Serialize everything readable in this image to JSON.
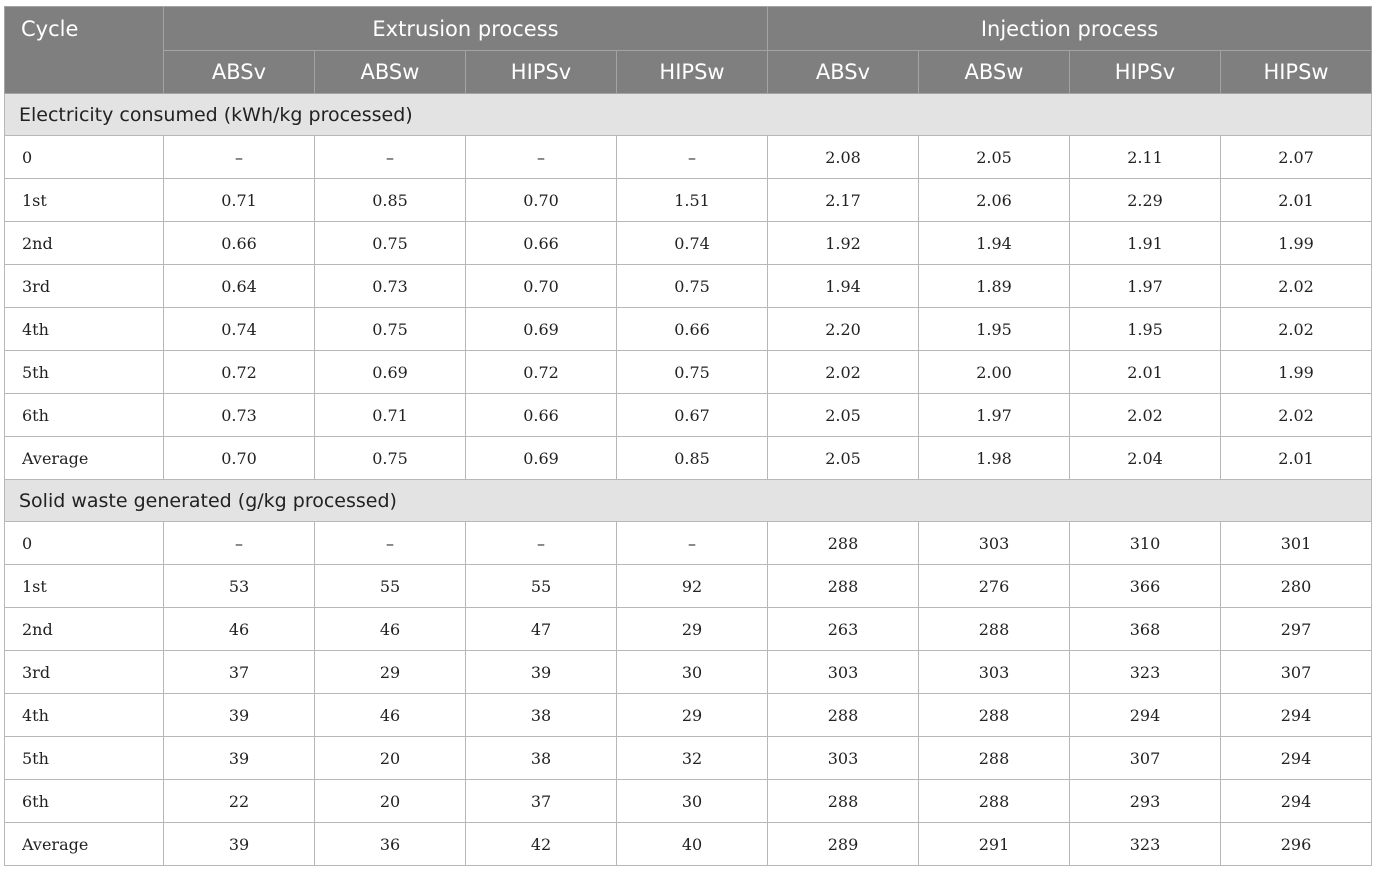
{
  "header": {
    "cycle_label": "Cycle",
    "groups": [
      "Extrusion process",
      "Injection process"
    ],
    "columns": [
      "ABSv",
      "ABSw",
      "HIPSv",
      "HIPSw",
      "ABSv",
      "ABSw",
      "HIPSv",
      "HIPSw"
    ]
  },
  "sections": [
    {
      "title": "Electricity consumed (kWh/kg processed)",
      "rows": [
        {
          "label": "0",
          "values": [
            "–",
            "–",
            "–",
            "–",
            "2.08",
            "2.05",
            "2.11",
            "2.07"
          ]
        },
        {
          "label": "1st",
          "values": [
            "0.71",
            "0.85",
            "0.70",
            "1.51",
            "2.17",
            "2.06",
            "2.29",
            "2.01"
          ]
        },
        {
          "label": "2nd",
          "values": [
            "0.66",
            "0.75",
            "0.66",
            "0.74",
            "1.92",
            "1.94",
            "1.91",
            "1.99"
          ]
        },
        {
          "label": "3rd",
          "values": [
            "0.64",
            "0.73",
            "0.70",
            "0.75",
            "1.94",
            "1.89",
            "1.97",
            "2.02"
          ]
        },
        {
          "label": "4th",
          "values": [
            "0.74",
            "0.75",
            "0.69",
            "0.66",
            "2.20",
            "1.95",
            "1.95",
            "2.02"
          ]
        },
        {
          "label": "5th",
          "values": [
            "0.72",
            "0.69",
            "0.72",
            "0.75",
            "2.02",
            "2.00",
            "2.01",
            "1.99"
          ]
        },
        {
          "label": "6th",
          "values": [
            "0.73",
            "0.71",
            "0.66",
            "0.67",
            "2.05",
            "1.97",
            "2.02",
            "2.02"
          ]
        },
        {
          "label": "Average",
          "values": [
            "0.70",
            "0.75",
            "0.69",
            "0.85",
            "2.05",
            "1.98",
            "2.04",
            "2.01"
          ]
        }
      ]
    },
    {
      "title": "Solid waste generated (g/kg processed)",
      "rows": [
        {
          "label": "0",
          "values": [
            "–",
            "–",
            "–",
            "–",
            "288",
            "303",
            "310",
            "301"
          ]
        },
        {
          "label": "1st",
          "values": [
            "53",
            "55",
            "55",
            "92",
            "288",
            "276",
            "366",
            "280"
          ]
        },
        {
          "label": "2nd",
          "values": [
            "46",
            "46",
            "47",
            "29",
            "263",
            "288",
            "368",
            "297"
          ]
        },
        {
          "label": "3rd",
          "values": [
            "37",
            "29",
            "39",
            "30",
            "303",
            "303",
            "323",
            "307"
          ]
        },
        {
          "label": "4th",
          "values": [
            "39",
            "46",
            "38",
            "29",
            "288",
            "288",
            "294",
            "294"
          ]
        },
        {
          "label": "5th",
          "values": [
            "39",
            "20",
            "38",
            "32",
            "303",
            "288",
            "307",
            "294"
          ]
        },
        {
          "label": "6th",
          "values": [
            "22",
            "20",
            "37",
            "30",
            "288",
            "288",
            "293",
            "294"
          ]
        },
        {
          "label": "Average",
          "values": [
            "39",
            "36",
            "42",
            "40",
            "289",
            "291",
            "323",
            "296"
          ]
        }
      ]
    }
  ]
}
